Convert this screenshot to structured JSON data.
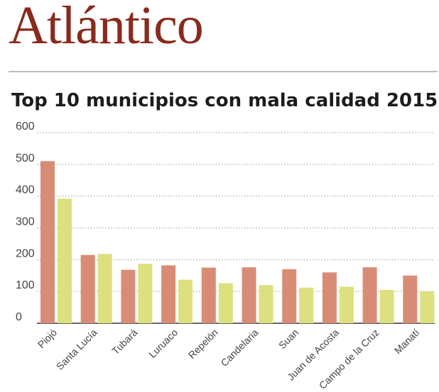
{
  "header": {
    "title": "Atlántico",
    "subtitle": "Top 10 municipios con mala calidad 2015"
  },
  "colors": {
    "title": "#8a2a1c",
    "series_a": "#d98c75",
    "series_b": "#dde07e",
    "gridline": "#9a9a9a",
    "axis_text": "#444444"
  },
  "chart_data": {
    "type": "bar",
    "categories": [
      "Piojó",
      "Santa Lucía",
      "Tubará",
      "Luruaco",
      "Repelón",
      "Candelaria",
      "Suan",
      "Juan de Acosta",
      "Campo de la Cruz",
      "Manatí"
    ],
    "series": [
      {
        "values": [
          510,
          215,
          168,
          182,
          175,
          176,
          170,
          160,
          176,
          150
        ]
      },
      {
        "values": [
          392,
          218,
          187,
          137,
          126,
          120,
          112,
          115,
          105,
          100
        ]
      }
    ],
    "yticks": [
      0,
      100,
      200,
      300,
      400,
      500,
      600
    ],
    "ylim": [
      0,
      600
    ],
    "grid": true,
    "legend": "none"
  }
}
